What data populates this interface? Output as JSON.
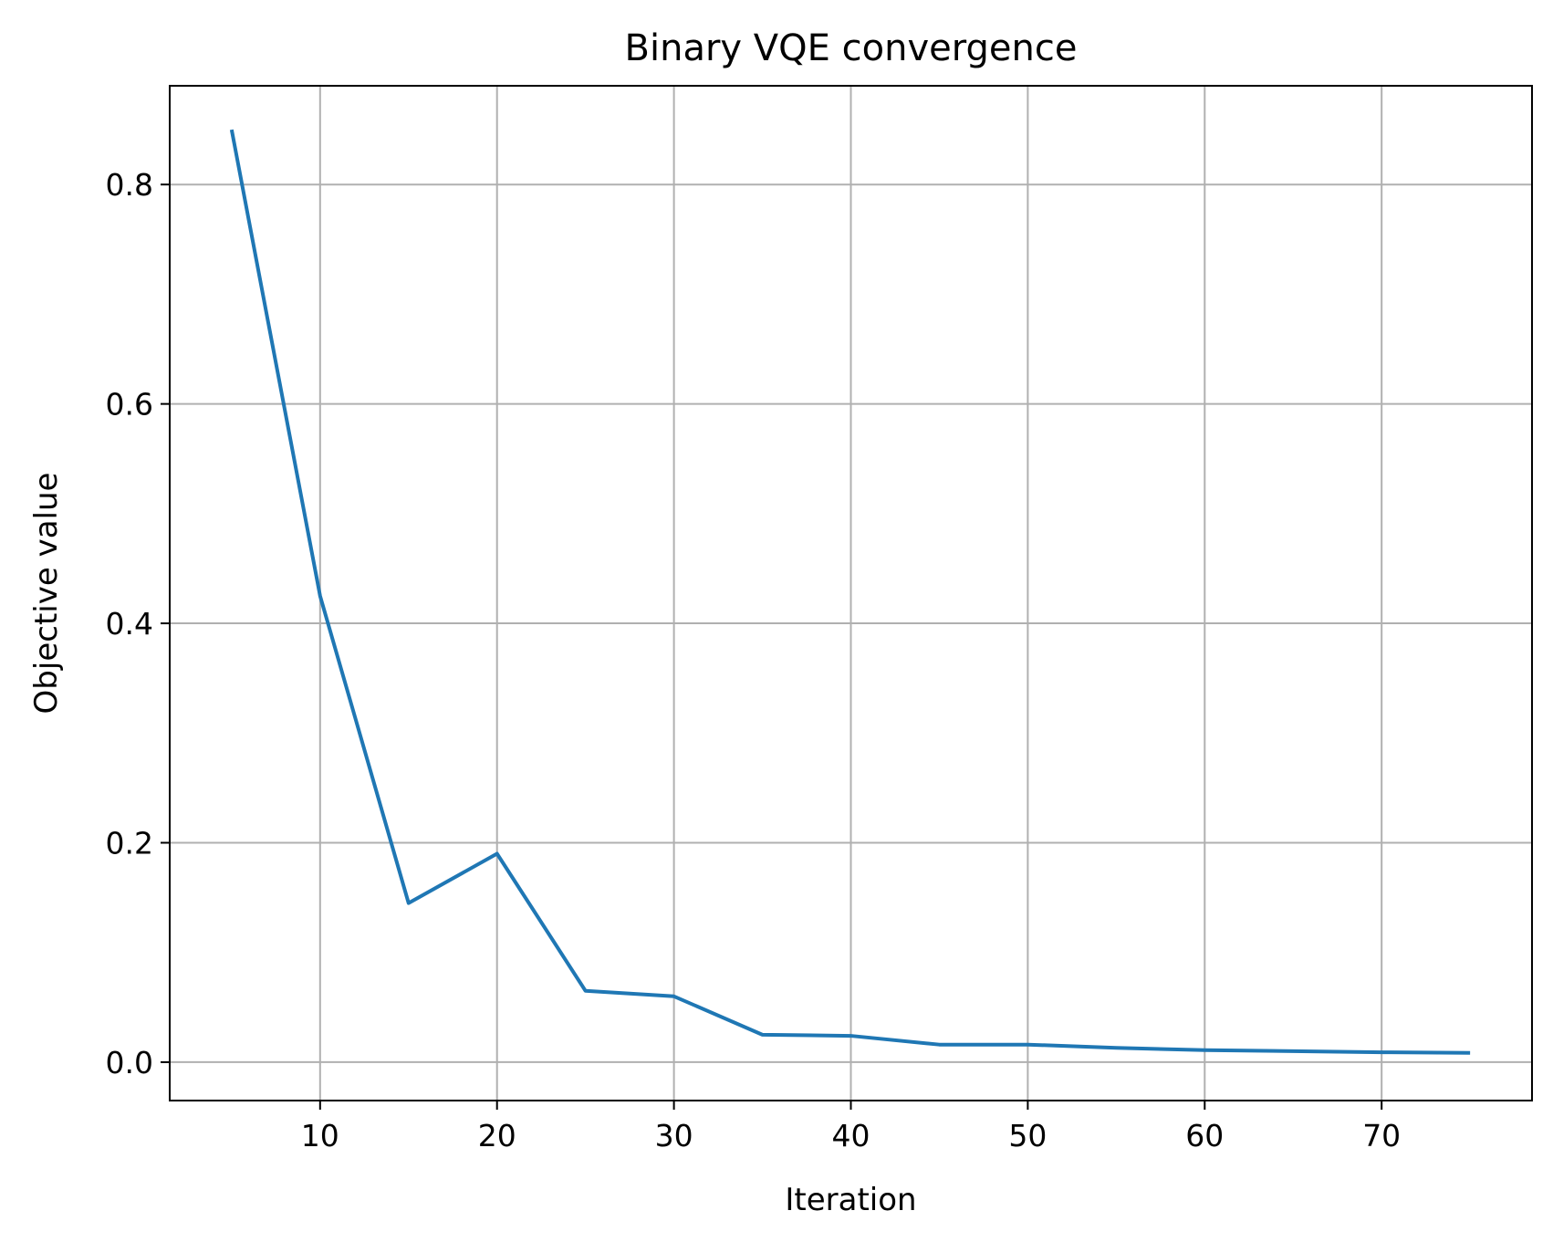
{
  "chart_data": {
    "type": "line",
    "title": "Binary VQE convergence",
    "xlabel": "Iteration",
    "ylabel": "Objective value",
    "xlim": [
      1.5,
      78.5
    ],
    "ylim": [
      -0.035,
      0.89
    ],
    "xticks": [
      10,
      20,
      30,
      40,
      50,
      60,
      70
    ],
    "yticks": [
      0.0,
      0.2,
      0.4,
      0.6,
      0.8
    ],
    "ytick_labels": [
      "0.0",
      "0.2",
      "0.4",
      "0.6",
      "0.8"
    ],
    "grid": true,
    "series": [
      {
        "color": "#1f77b4",
        "x": [
          5,
          10,
          15,
          20,
          25,
          30,
          35,
          40,
          45,
          50,
          55,
          60,
          65,
          70,
          75
        ],
        "y": [
          0.85,
          0.425,
          0.145,
          0.19,
          0.065,
          0.06,
          0.025,
          0.024,
          0.016,
          0.016,
          0.013,
          0.011,
          0.01,
          0.009,
          0.0085
        ]
      }
    ]
  }
}
